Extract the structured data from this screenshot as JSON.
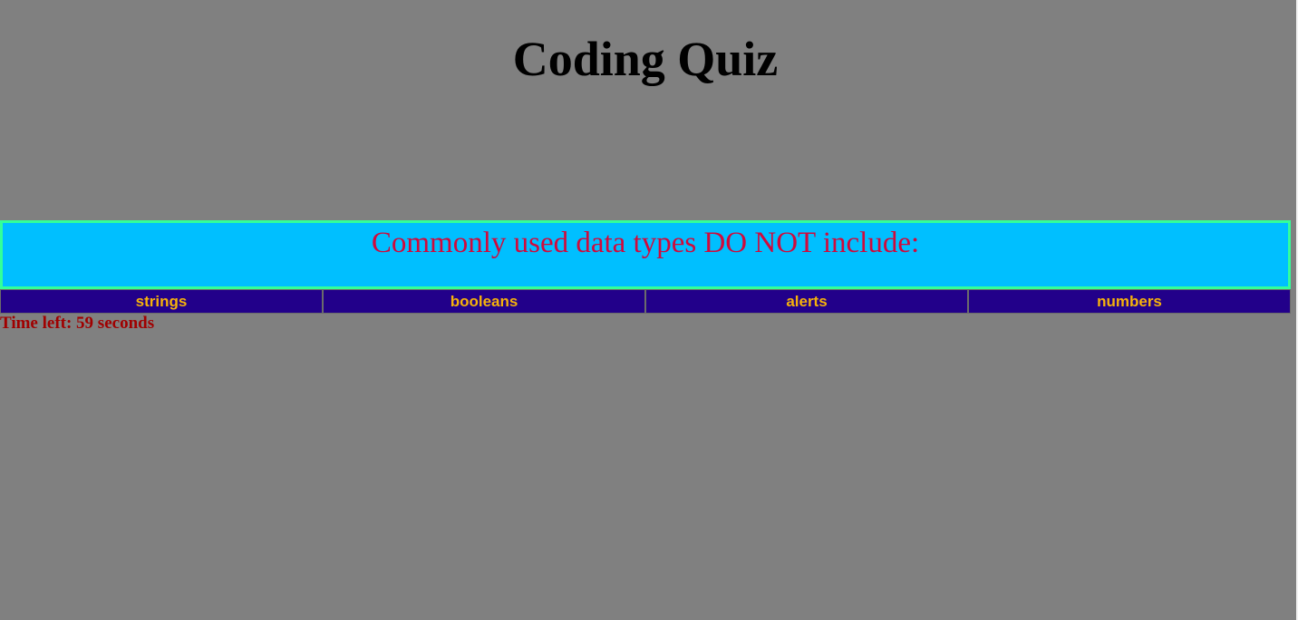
{
  "header": {
    "title": "Coding Quiz"
  },
  "question": {
    "text": "Commonly used data types DO NOT include:"
  },
  "answers": [
    {
      "label": "strings"
    },
    {
      "label": "booleans"
    },
    {
      "label": "alerts"
    },
    {
      "label": "numbers"
    }
  ],
  "timer": {
    "text": "Time left: 59 seconds"
  },
  "colors": {
    "background": "#808080",
    "question_bg": "#00bfff",
    "question_border": "#33ff99",
    "question_text": "#d00a3c",
    "answer_bg": "#22008a",
    "answer_text": "#f6b20b",
    "timer_text": "#a00000"
  }
}
